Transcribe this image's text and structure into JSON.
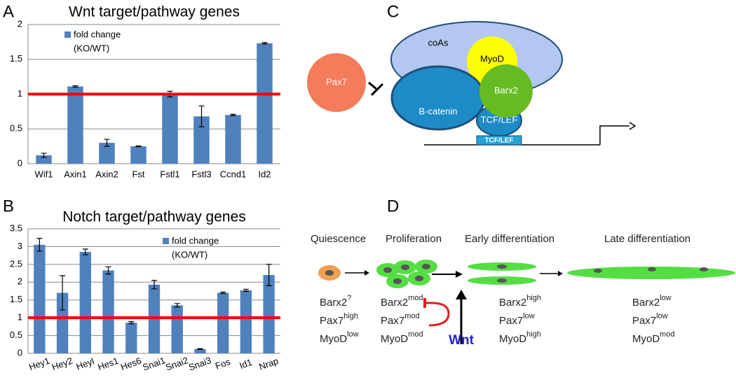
{
  "panel_labels": [
    "A",
    "B",
    "C",
    "D"
  ],
  "chart_data": [
    {
      "type": "bar",
      "title": "Wnt target/pathway genes",
      "categories": [
        "Wif1",
        "Axin1",
        "Axin2",
        "Fst",
        "Fstl1",
        "Fstl3",
        "Ccnd1",
        "Id2"
      ],
      "series": [
        {
          "name": "fold change",
          "color": "#4f81bd",
          "values": [
            0.12,
            1.11,
            0.3,
            0.25,
            1.0,
            0.68,
            0.7,
            1.73
          ],
          "errors": [
            0.03,
            0.01,
            0.05,
            0.005,
            0.04,
            0.15,
            0.01,
            0.01
          ]
        }
      ],
      "legend_subtitle": "(KO/WT)",
      "reference_line": 1,
      "reference_color": "#ff0000",
      "ylim": [
        0,
        2
      ],
      "yticks": [
        0,
        0.5,
        1,
        1.5,
        2
      ],
      "grid": true
    },
    {
      "type": "bar",
      "title": "Notch target/pathway genes",
      "categories": [
        "Hey1",
        "Hey2",
        "Heyl",
        "Hes1",
        "Hes6",
        "Snai1",
        "Snai2",
        "Snai3",
        "Fos",
        "Id1",
        "Nrap"
      ],
      "series": [
        {
          "name": "fold change",
          "color": "#4f81bd",
          "values": [
            3.05,
            1.7,
            2.85,
            2.33,
            0.86,
            1.93,
            1.35,
            0.12,
            1.7,
            1.77,
            2.2
          ],
          "errors": [
            0.18,
            0.48,
            0.08,
            0.1,
            0.03,
            0.12,
            0.05,
            0.01,
            0.02,
            0.03,
            0.3
          ]
        }
      ],
      "legend_subtitle": "(KO/WT)",
      "reference_line": 1,
      "reference_color": "#ff0000",
      "ylim": [
        0,
        3.5
      ],
      "yticks": [
        0,
        0.5,
        1,
        1.5,
        2,
        2.5,
        3,
        3.5
      ],
      "grid": true
    }
  ],
  "panel_c": {
    "coactivators": "coAs",
    "myod": "MyoD",
    "pax7": "Pax7",
    "beta_catenin": "B-catenin",
    "barx2": "Barx2",
    "tcf_lef": "TCF/LEF",
    "tcf_lef_site": "TCF/LEF"
  },
  "panel_d": {
    "stages": [
      "Quiescence",
      "Proliferation",
      "Early differentiation",
      "Late differentiation"
    ],
    "markers": [
      [
        {
          "base": "Barx2",
          "sup": "?"
        },
        {
          "base": "Pax7",
          "sup": "high"
        },
        {
          "base": "MyoD",
          "sup": "low"
        }
      ],
      [
        {
          "base": "Barx2",
          "sup": "mod"
        },
        {
          "base": "Pax7",
          "sup": "mod"
        },
        {
          "base": "MyoD",
          "sup": "mod"
        }
      ],
      [
        {
          "base": "Barx2",
          "sup": "high"
        },
        {
          "base": "Pax7",
          "sup": "low"
        },
        {
          "base": "MyoD",
          "sup": "high"
        }
      ],
      [
        {
          "base": "Barx2",
          "sup": "low"
        },
        {
          "base": "Pax7",
          "sup": "low"
        },
        {
          "base": "MyoD",
          "sup": "mod"
        }
      ]
    ],
    "signal": "Wnt"
  }
}
